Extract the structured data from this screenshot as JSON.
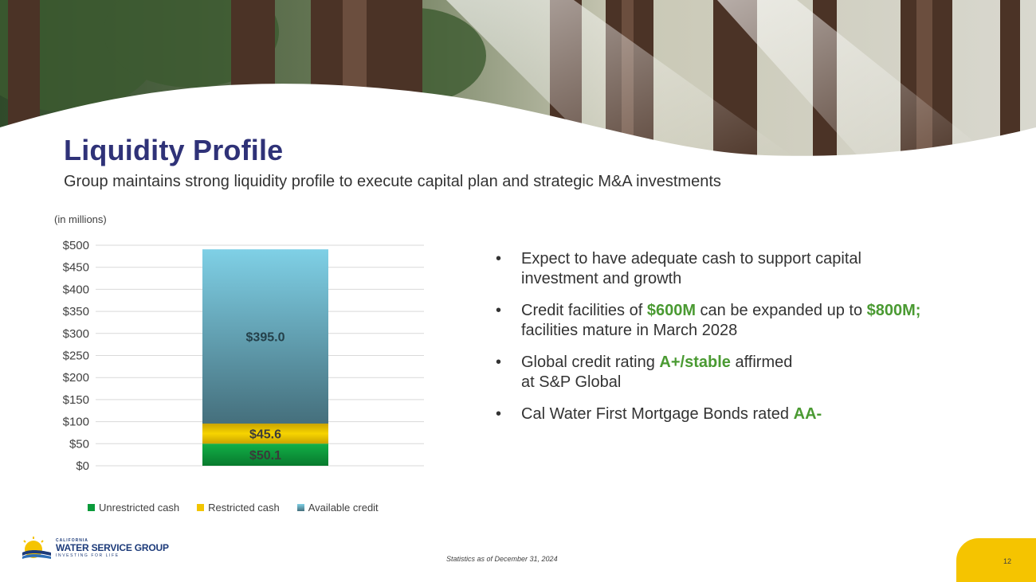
{
  "slide": {
    "title": "Liquidity Profile",
    "subtitle": "Group maintains strong liquidity profile to execute capital plan and strategic M&A investments",
    "units_label": "(in millions)",
    "footnote": "Statistics as of December 31, 2024",
    "page_number": "12"
  },
  "bullets": [
    {
      "parts": [
        "Expect to have adequate cash to support capital",
        "investment and growth"
      ]
    },
    {
      "pre": "Credit facilities of ",
      "hl1": "$600M",
      "mid": " can be expanded up to ",
      "hl2": "$800M;",
      "post": "facilities mature in March 2028"
    },
    {
      "pre": "Global credit rating ",
      "hl1": "A+/stable",
      "mid": " affirmed",
      "post": "at S&P Global"
    },
    {
      "pre": "Cal Water First Mortgage Bonds rated ",
      "hl1": "AA-"
    }
  ],
  "logo": {
    "small": "CALIFORNIA",
    "main": "WATER SERVICE GROUP",
    "tag": "INVESTING FOR LIFE"
  },
  "colors": {
    "unrestricted": "#0a9a3a",
    "restricted": "#f2c500",
    "available_top": "#7fd0e6",
    "available_bottom": "#456f7c",
    "highlight": "#4a9a32",
    "title": "#2f3278"
  },
  "chart_data": {
    "type": "bar",
    "stacked": true,
    "categories": [
      ""
    ],
    "series": [
      {
        "name": "Unrestricted cash",
        "values": [
          50.1
        ],
        "label": "$50.1"
      },
      {
        "name": "Restricted cash",
        "values": [
          45.6
        ],
        "label": "$45.6"
      },
      {
        "name": "Available credit",
        "values": [
          395.0
        ],
        "label": "$395.0"
      }
    ],
    "ylim": [
      0,
      500
    ],
    "yticks": [
      "$0",
      "$50",
      "$100",
      "$150",
      "$200",
      "$250",
      "$300",
      "$350",
      "$400",
      "$450",
      "$500"
    ],
    "ytick_values": [
      0,
      50,
      100,
      150,
      200,
      250,
      300,
      350,
      400,
      450,
      500
    ],
    "ylabel": "(in millions)",
    "grid": true,
    "legend": "bottom"
  }
}
